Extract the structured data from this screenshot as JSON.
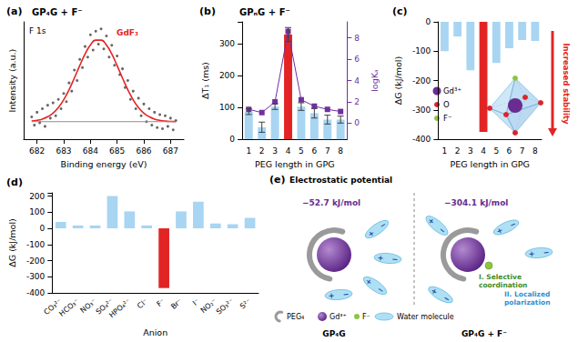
{
  "chart_data": [
    {
      "type": "scatter",
      "title": "(a)",
      "subtitle": "GP₄G + F⁻",
      "annotations": [
        {
          "text": "F 1s",
          "color": "#000000"
        }
      ],
      "x_label": "Binding energy (eV)",
      "y_label": "Intensity (a.u.)",
      "xlim": [
        681.5,
        687.5
      ],
      "xticks": [
        682,
        683,
        684,
        685,
        686,
        687
      ],
      "ylim": [
        0,
        10
      ],
      "yticks": [],
      "tick_labels": "x",
      "grid": false,
      "series": [
        {
          "type": "scatter",
          "color": "#404040",
          "marker": "circle",
          "x": [
            681.8,
            681.9,
            682.0,
            682.1,
            682.2,
            682.3,
            682.4,
            682.5,
            682.6,
            682.7,
            682.8,
            682.9,
            683.0,
            683.1,
            683.2,
            683.3,
            683.4,
            683.5,
            683.6,
            683.7,
            683.8,
            683.9,
            684.0,
            684.1,
            684.2,
            684.3,
            684.4,
            684.5,
            684.6,
            684.7,
            684.8,
            684.9,
            685.0,
            685.1,
            685.2,
            685.3,
            685.4,
            685.5,
            685.6,
            685.7,
            685.8,
            685.9,
            686.0,
            686.1,
            686.2,
            686.3,
            686.4,
            686.5,
            686.6,
            686.7,
            686.8,
            686.9,
            687.0,
            687.1,
            687.2
          ],
          "values": [
            1.9,
            1.2,
            2.3,
            1.4,
            2.6,
            1.1,
            2.9,
            1.8,
            3.1,
            2.0,
            3.4,
            2.6,
            3.9,
            3.2,
            4.8,
            4.1,
            5.9,
            5.0,
            6.8,
            6.1,
            7.9,
            7.0,
            8.9,
            7.6,
            9.2,
            8.1,
            9.4,
            7.7,
            8.8,
            7.0,
            8.0,
            6.3,
            7.1,
            5.5,
            6.0,
            4.4,
            5.0,
            3.4,
            4.1,
            2.6,
            3.5,
            2.0,
            3.0,
            1.5,
            2.6,
            1.2,
            2.3,
            1.0,
            2.1,
            0.9,
            2.0,
            1.1,
            1.8,
            0.8,
            1.6
          ]
        },
        {
          "name": "GdF₃",
          "type": "line",
          "color": "#e32424",
          "line_style": "solid",
          "x": [
            681.8,
            682.0,
            682.2,
            682.4,
            682.6,
            682.8,
            683.0,
            683.2,
            683.4,
            683.6,
            683.8,
            684.0,
            684.2,
            684.4,
            684.6,
            684.8,
            685.0,
            685.2,
            685.4,
            685.6,
            685.8,
            686.0,
            686.2,
            686.4,
            686.6,
            686.8,
            687.0,
            687.2
          ],
          "values": [
            1.55,
            1.61,
            1.72,
            1.92,
            2.23,
            2.7,
            3.37,
            4.22,
            5.22,
            6.27,
            7.26,
            8.02,
            8.44,
            8.44,
            8.02,
            7.26,
            6.27,
            5.22,
            4.22,
            3.37,
            2.7,
            2.23,
            1.92,
            1.72,
            1.61,
            1.55,
            1.52,
            1.51
          ]
        },
        {
          "type": "line",
          "color": "#8c8c8c",
          "line_style": "solid",
          "x": [
            681.8,
            687.2
          ],
          "values": [
            1.5,
            1.5
          ]
        }
      ]
    },
    {
      "type": "bar",
      "title": "(b)",
      "subtitle": "GPₙG + F⁻",
      "x_label": "PEG length in GPG",
      "y_label": "ΔT₁ (ms)",
      "y2_label": "logKₐ",
      "categories": [
        "1",
        "2",
        "3",
        "4",
        "5",
        "6",
        "7",
        "8"
      ],
      "ylim": [
        0,
        370
      ],
      "yticks": [
        0,
        100,
        200,
        300
      ],
      "y2lim": [
        -1.5,
        9.5
      ],
      "y2ticks": [
        0,
        2,
        4,
        6,
        8
      ],
      "grid": false,
      "series": [
        {
          "type": "bar",
          "colors": [
            "#a8d5f2",
            "#a8d5f2",
            "#a8d5f2",
            "#e32424",
            "#a8d5f2",
            "#a8d5f2",
            "#a8d5f2",
            "#a8d5f2"
          ],
          "values": [
            87,
            38,
            103,
            330,
            103,
            82,
            62,
            62
          ],
          "errors": [
            9,
            16,
            9,
            22,
            12,
            15,
            14,
            11
          ]
        },
        {
          "type": "line",
          "axis": "y2",
          "color": "#7030a0",
          "marker": "square",
          "line_style": "solid",
          "values": [
            1.3,
            1.0,
            2.0,
            8.6,
            2.2,
            1.6,
            1.3,
            1.1
          ]
        }
      ]
    },
    {
      "type": "bar",
      "title": "(c)",
      "x_label": "PEG length in GPG",
      "y_label": "ΔG (kJ/mol)",
      "categories": [
        "1",
        "2",
        "3",
        "4",
        "5",
        "6",
        "7",
        "8"
      ],
      "ylim": [
        -400,
        0
      ],
      "yticks": [
        -400,
        -300,
        -200,
        -100,
        0
      ],
      "grid": false,
      "annotations": [
        {
          "text": "Increased stability",
          "color": "#e32424"
        },
        {
          "text": "Gd³⁺",
          "color": "#6a2c91",
          "marker": "circle"
        },
        {
          "text": "O",
          "color": "#d9262a",
          "marker": "circle"
        },
        {
          "text": "F⁻",
          "color": "#8cc63f",
          "marker": "circle"
        }
      ],
      "series": [
        {
          "type": "bar",
          "colors": [
            "#a8d5f2",
            "#a8d5f2",
            "#a8d5f2",
            "#e32424",
            "#a8d5f2",
            "#a8d5f2",
            "#a8d5f2",
            "#a8d5f2"
          ],
          "values": [
            -100,
            -50,
            -165,
            -375,
            -140,
            -90,
            -62,
            -65
          ]
        }
      ]
    },
    {
      "type": "bar",
      "title": "(d)",
      "x_label": "Anion",
      "y_label": "ΔG (kJ/mol)",
      "categories": [
        "CO₃²⁻",
        "HCO₃⁻",
        "NO₃⁻",
        "SO₄²⁻",
        "HPO₄²⁻",
        "Cl⁻",
        "F⁻",
        "Br⁻",
        "I⁻",
        "NO₂⁻",
        "SO₃²⁻",
        "S²⁻"
      ],
      "ylim": [
        -400,
        220
      ],
      "yticks": [
        -400,
        -300,
        -200,
        -100,
        0,
        100,
        200
      ],
      "grid": false,
      "series": [
        {
          "type": "bar",
          "colors": [
            "#a8d5f2",
            "#a8d5f2",
            "#a8d5f2",
            "#a8d5f2",
            "#a8d5f2",
            "#a8d5f2",
            "#e32424",
            "#a8d5f2",
            "#a8d5f2",
            "#a8d5f2",
            "#a8d5f2",
            "#a8d5f2"
          ],
          "values": [
            40,
            18,
            18,
            200,
            105,
            18,
            -370,
            105,
            165,
            30,
            25,
            65
          ]
        }
      ]
    }
  ],
  "diagram": {
    "title": "(e)",
    "heading": "Electrostatic potential",
    "left": {
      "potential": "−52.7 kJ/mol",
      "caption": "GP₄G"
    },
    "right": {
      "potential": "−304.1 kJ/mol",
      "caption": "GP₄G + F⁻",
      "labels": [
        "I. Selective coordination",
        "II. Localized polarization"
      ]
    },
    "charges": [
      "+",
      "−"
    ],
    "key_items": [
      "PEG₄",
      "Gd³⁺",
      "F⁻",
      "Water molecule"
    ]
  }
}
